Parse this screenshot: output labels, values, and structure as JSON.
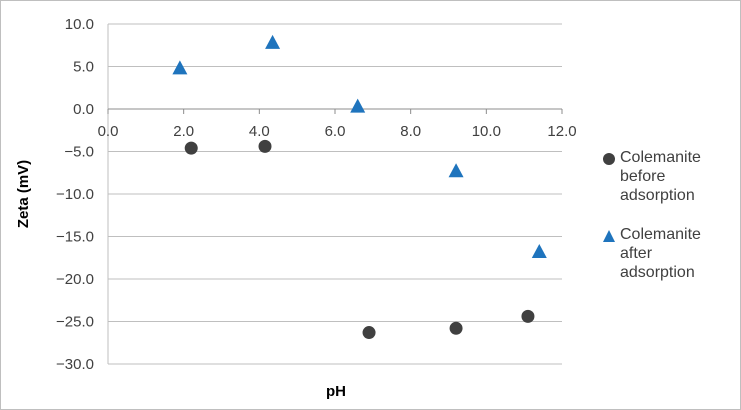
{
  "chart_data": {
    "type": "scatter",
    "title": "",
    "xlabel": "pH",
    "ylabel": "Zeta (mV)",
    "xlim": [
      0,
      12
    ],
    "ylim": [
      -30,
      10
    ],
    "x_ticks": [
      0,
      2,
      4,
      6,
      8,
      10,
      12
    ],
    "y_ticks": [
      10,
      5,
      0,
      -5,
      -10,
      -15,
      -20,
      -25,
      -30
    ],
    "x_tick_labels": [
      "0.0",
      "2.0",
      "4.0",
      "6.0",
      "8.0",
      "10.0",
      "12.0"
    ],
    "y_tick_labels": [
      "10.0",
      "5.0",
      "0.0",
      "−5.0",
      "−10.0",
      "−15.0",
      "−20.0",
      "−25.0",
      "−30.0"
    ],
    "grid": "horizontal",
    "legend_position": "right",
    "series": [
      {
        "name": "Colemanite before adsorption",
        "marker": "circle",
        "color": "#404040",
        "x": [
          2.2,
          4.15,
          6.9,
          9.2,
          11.1
        ],
        "y": [
          -4.6,
          -4.4,
          -26.3,
          -25.8,
          -24.4
        ]
      },
      {
        "name": "Colemanite after adsorption",
        "marker": "triangle",
        "color": "#1f74bd",
        "x": [
          1.9,
          4.35,
          6.6,
          9.2,
          11.4
        ],
        "y": [
          4.9,
          7.9,
          0.4,
          -7.2,
          -16.7
        ]
      }
    ]
  }
}
